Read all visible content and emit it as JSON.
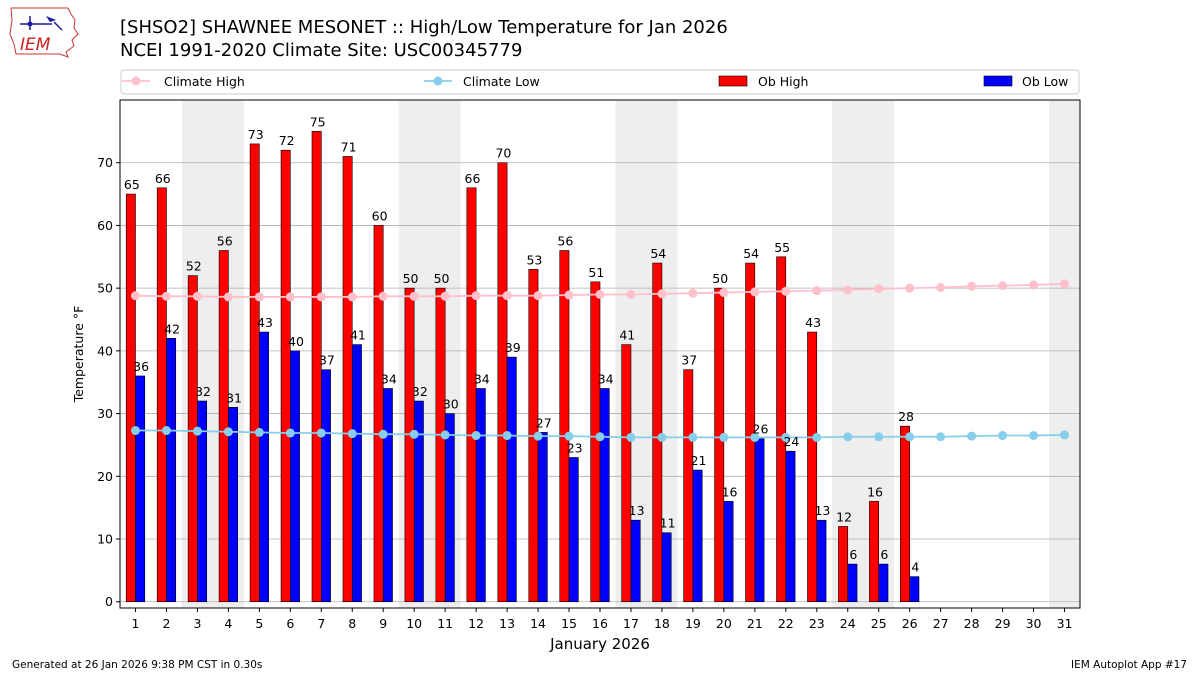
{
  "header": {
    "logo_text": "IEM",
    "title_line1": "[SHSO2] SHAWNEE MESONET :: High/Low Temperature for Jan 2026",
    "title_line2": "NCEI 1991-2020 Climate Site: USC00345779"
  },
  "footer": {
    "generated": "Generated at 26 Jan 2026 9:38 PM CST in 0.30s",
    "app": "IEM Autoplot App #17"
  },
  "colors": {
    "ob_high": "#ff0000",
    "ob_low": "#0000ff",
    "climate_high": "#ffc0cb",
    "climate_low": "#87ceeb",
    "weekend_shade": "#eeeeee",
    "grid": "#b0b0b0"
  },
  "chart_data": {
    "type": "bar",
    "xlabel": "January 2026",
    "ylabel": "Temperature °F",
    "ylim": [
      -1,
      80
    ],
    "yticks": [
      0,
      10,
      20,
      30,
      40,
      50,
      60,
      70
    ],
    "grid": "horizontal",
    "legend_position": "top",
    "x": [
      1,
      2,
      3,
      4,
      5,
      6,
      7,
      8,
      9,
      10,
      11,
      12,
      13,
      14,
      15,
      16,
      17,
      18,
      19,
      20,
      21,
      22,
      23,
      24,
      25,
      26,
      27,
      28,
      29,
      30,
      31
    ],
    "shaded_days": [
      3,
      4,
      10,
      11,
      17,
      18,
      24,
      25,
      31
    ],
    "series": [
      {
        "name": "Climate High",
        "kind": "line",
        "values": [
          48.8,
          48.7,
          48.7,
          48.6,
          48.6,
          48.6,
          48.6,
          48.6,
          48.7,
          48.7,
          48.7,
          48.8,
          48.8,
          48.8,
          48.9,
          49.0,
          49.0,
          49.1,
          49.2,
          49.3,
          49.4,
          49.5,
          49.6,
          49.7,
          49.9,
          50.0,
          50.1,
          50.3,
          50.4,
          50.5,
          50.7
        ]
      },
      {
        "name": "Climate Low",
        "kind": "line",
        "values": [
          27.3,
          27.3,
          27.2,
          27.1,
          27.0,
          26.9,
          26.9,
          26.8,
          26.7,
          26.7,
          26.6,
          26.5,
          26.5,
          26.4,
          26.4,
          26.3,
          26.2,
          26.2,
          26.2,
          26.2,
          26.2,
          26.2,
          26.2,
          26.3,
          26.3,
          26.3,
          26.3,
          26.4,
          26.5,
          26.5,
          26.6
        ]
      },
      {
        "name": "Ob High",
        "kind": "bar",
        "values": [
          65,
          66,
          52,
          56,
          73,
          72,
          75,
          71,
          60,
          50,
          50,
          66,
          70,
          53,
          56,
          51,
          41,
          54,
          37,
          50,
          54,
          55,
          43,
          12,
          16,
          28,
          null,
          null,
          null,
          null,
          null
        ],
        "labels": [
          "65",
          "66",
          "52",
          "56",
          "73",
          "72",
          "75",
          "71",
          "60",
          "50",
          "50",
          "66",
          "70",
          "53",
          "56",
          "51",
          "41",
          "54",
          "37",
          "50",
          "54",
          "55",
          "43",
          "12",
          "16",
          "28",
          "",
          "",
          "",
          "",
          ""
        ]
      },
      {
        "name": "Ob Low",
        "kind": "bar",
        "values": [
          36,
          42,
          32,
          31,
          43,
          40,
          37,
          41,
          34,
          32,
          30,
          34,
          39,
          27,
          23,
          34,
          13,
          11,
          21,
          16,
          26,
          24,
          13,
          6,
          6,
          4,
          null,
          null,
          null,
          null,
          null
        ],
        "labels": [
          "36",
          "42",
          "32",
          "31",
          "43",
          "40",
          "37",
          "41",
          "34",
          "32",
          "30",
          "34",
          "39",
          "27",
          "23",
          "34",
          "13",
          "11",
          "21",
          "16",
          "26",
          "24",
          "13",
          "6",
          "6",
          "4",
          "",
          "",
          "",
          "",
          ""
        ]
      }
    ]
  }
}
